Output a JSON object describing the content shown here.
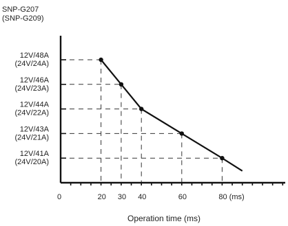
{
  "chart_data": {
    "type": "line",
    "title": "SNP-G207",
    "subtitle": "(SNP-G209)",
    "xlabel": "Operation time (ms)",
    "x_ticks": [
      "0",
      "20",
      "30",
      "40",
      "60",
      "80 (ms)"
    ],
    "y_ticks": [
      {
        "line1": "12V/41A",
        "line2": "(24V/20A)"
      },
      {
        "line1": "12V/43A",
        "line2": "(24V/21A)"
      },
      {
        "line1": "12V/44A",
        "line2": "(24V/22A)"
      },
      {
        "line1": "12V/46A",
        "line2": "(24V/23A)"
      },
      {
        "line1": "12V/48A",
        "line2": "(24V/24A)"
      }
    ],
    "series": [
      {
        "points": [
          {
            "x": 20,
            "level": 5
          },
          {
            "x": 30,
            "level": 4
          },
          {
            "x": 40,
            "level": 3
          },
          {
            "x": 60,
            "level": 2
          },
          {
            "x": 80,
            "level": 1
          },
          {
            "x": 90,
            "level": 0.48
          }
        ],
        "markers_on": [
          20,
          30,
          40,
          60,
          80
        ]
      }
    ],
    "x_minor_tick_step": 5,
    "xlim": [
      0,
      110
    ],
    "ylim": [
      0,
      6
    ],
    "grid": "dashed guide lines to each marked point",
    "colors": {
      "line": "#111111",
      "guide": "#333333",
      "axis": "#111111",
      "text": "#222222"
    }
  }
}
